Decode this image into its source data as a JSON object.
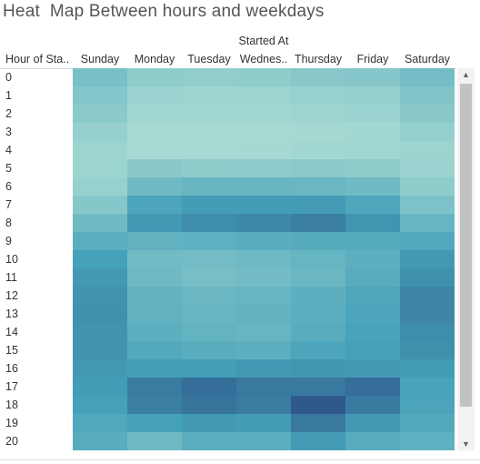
{
  "title": "Heat  Map Between hours and weekdays",
  "chart_data": {
    "type": "heatmap",
    "title": "Heat  Map Between hours and weekdays",
    "column_group_label": "Started At",
    "row_header": "Hour of Sta..",
    "columns": [
      "Sunday",
      "Monday",
      "Tuesday",
      "Wednes..",
      "Thursday",
      "Friday",
      "Saturday"
    ],
    "rows": [
      "0",
      "1",
      "2",
      "3",
      "4",
      "5",
      "6",
      "7",
      "8",
      "9",
      "10",
      "11",
      "12",
      "13",
      "14",
      "15",
      "16",
      "17",
      "18",
      "19",
      "20"
    ],
    "values": [
      [
        0.32,
        0.2,
        0.19,
        0.2,
        0.24,
        0.26,
        0.34
      ],
      [
        0.26,
        0.14,
        0.12,
        0.13,
        0.16,
        0.18,
        0.28
      ],
      [
        0.22,
        0.1,
        0.09,
        0.1,
        0.12,
        0.14,
        0.23
      ],
      [
        0.17,
        0.07,
        0.07,
        0.07,
        0.08,
        0.09,
        0.18
      ],
      [
        0.13,
        0.07,
        0.07,
        0.08,
        0.09,
        0.1,
        0.13
      ],
      [
        0.13,
        0.23,
        0.2,
        0.21,
        0.22,
        0.2,
        0.14
      ],
      [
        0.16,
        0.37,
        0.41,
        0.41,
        0.4,
        0.37,
        0.2
      ],
      [
        0.25,
        0.56,
        0.62,
        0.62,
        0.63,
        0.55,
        0.3
      ],
      [
        0.37,
        0.64,
        0.7,
        0.72,
        0.76,
        0.66,
        0.42
      ],
      [
        0.48,
        0.45,
        0.46,
        0.49,
        0.51,
        0.51,
        0.54
      ],
      [
        0.6,
        0.36,
        0.34,
        0.38,
        0.42,
        0.47,
        0.64
      ],
      [
        0.64,
        0.38,
        0.33,
        0.35,
        0.4,
        0.5,
        0.68
      ],
      [
        0.67,
        0.44,
        0.4,
        0.42,
        0.47,
        0.55,
        0.73
      ],
      [
        0.68,
        0.45,
        0.42,
        0.44,
        0.48,
        0.56,
        0.73
      ],
      [
        0.67,
        0.48,
        0.43,
        0.42,
        0.5,
        0.58,
        0.7
      ],
      [
        0.67,
        0.53,
        0.49,
        0.47,
        0.56,
        0.6,
        0.69
      ],
      [
        0.64,
        0.61,
        0.61,
        0.64,
        0.66,
        0.64,
        0.62
      ],
      [
        0.62,
        0.78,
        0.85,
        0.8,
        0.8,
        0.85,
        0.58
      ],
      [
        0.6,
        0.77,
        0.82,
        0.78,
        0.95,
        0.79,
        0.57
      ],
      [
        0.54,
        0.6,
        0.64,
        0.62,
        0.8,
        0.64,
        0.53
      ],
      [
        0.5,
        0.38,
        0.48,
        0.47,
        0.63,
        0.5,
        0.46
      ]
    ],
    "color_scale": {
      "low": "#b4e2d6",
      "mid": "#45a1b9",
      "high": "#2c4f84"
    },
    "grid": false,
    "legend": "none"
  },
  "colors": {
    "scrollbar_track": "#f2f2f2",
    "scrollbar_thumb": "#c2c2c2"
  },
  "icons": {
    "scroll_up": "chevron-up-icon",
    "scroll_down": "chevron-down-icon"
  }
}
